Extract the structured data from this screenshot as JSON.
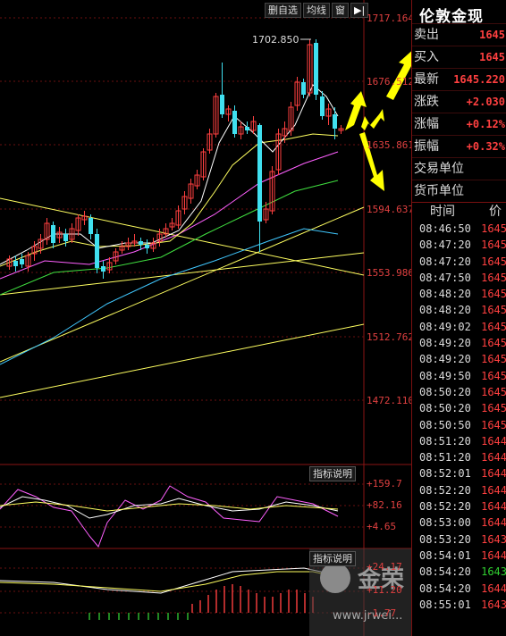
{
  "toolbar": {
    "watchlist_label": "删自选",
    "ma_label": "均线",
    "window_label": "窗",
    "arrow_label": "▶|"
  },
  "price_axis": [
    "1717.164",
    "1676.512",
    "1635.861",
    "1594.637",
    "1553.986",
    "1512.762",
    "1472.110"
  ],
  "peak_label": "1702.850",
  "indicator1": {
    "button": "指标说明",
    "axis": [
      "+159.7",
      "+82.16",
      "+4.65"
    ]
  },
  "indicator2": {
    "button": "指标说明",
    "axis": [
      "+24.17",
      "+11.20",
      "-1.77"
    ]
  },
  "panel": {
    "title": "伦敦金现",
    "quotes": [
      {
        "label": "卖出",
        "value": "1645"
      },
      {
        "label": "买入",
        "value": "1645"
      },
      {
        "label": "最新",
        "value": "1645.220"
      },
      {
        "label": "涨跌",
        "value": "+2.030"
      },
      {
        "label": "涨幅",
        "value": "+0.12%"
      },
      {
        "label": "振幅",
        "value": "+0.32%"
      }
    ],
    "units": [
      "交易单位",
      "货币单位"
    ],
    "ticks_header": {
      "time": "时间",
      "price": "价"
    },
    "ticks": [
      {
        "t": "08:46:50",
        "p": "1645"
      },
      {
        "t": "08:47:20",
        "p": "1645"
      },
      {
        "t": "08:47:20",
        "p": "1645"
      },
      {
        "t": "08:47:50",
        "p": "1645"
      },
      {
        "t": "08:48:20",
        "p": "1645"
      },
      {
        "t": "08:48:20",
        "p": "1645"
      },
      {
        "t": "08:49:02",
        "p": "1645"
      },
      {
        "t": "08:49:20",
        "p": "1645"
      },
      {
        "t": "08:49:20",
        "p": "1645"
      },
      {
        "t": "08:49:50",
        "p": "1645"
      },
      {
        "t": "08:50:20",
        "p": "1645"
      },
      {
        "t": "08:50:20",
        "p": "1645"
      },
      {
        "t": "08:50:50",
        "p": "1645"
      },
      {
        "t": "08:51:20",
        "p": "1644"
      },
      {
        "t": "08:51:20",
        "p": "1644"
      },
      {
        "t": "08:52:01",
        "p": "1644"
      },
      {
        "t": "08:52:20",
        "p": "1644"
      },
      {
        "t": "08:52:20",
        "p": "1644"
      },
      {
        "t": "08:53:00",
        "p": "1644"
      },
      {
        "t": "08:53:20",
        "p": "1643"
      },
      {
        "t": "08:54:01",
        "p": "1644"
      },
      {
        "t": "08:54:20",
        "p": "1643",
        "green": true
      },
      {
        "t": "08:54:20",
        "p": "1644"
      },
      {
        "t": "08:55:01",
        "p": "1643"
      }
    ]
  },
  "watermark": {
    "brand": "金荣",
    "url": "www.jrwei..."
  },
  "colors": {
    "up": "#ff4040",
    "down": "#40e0f0",
    "grid": "#6a1010",
    "arrow": "#ffff00"
  }
}
